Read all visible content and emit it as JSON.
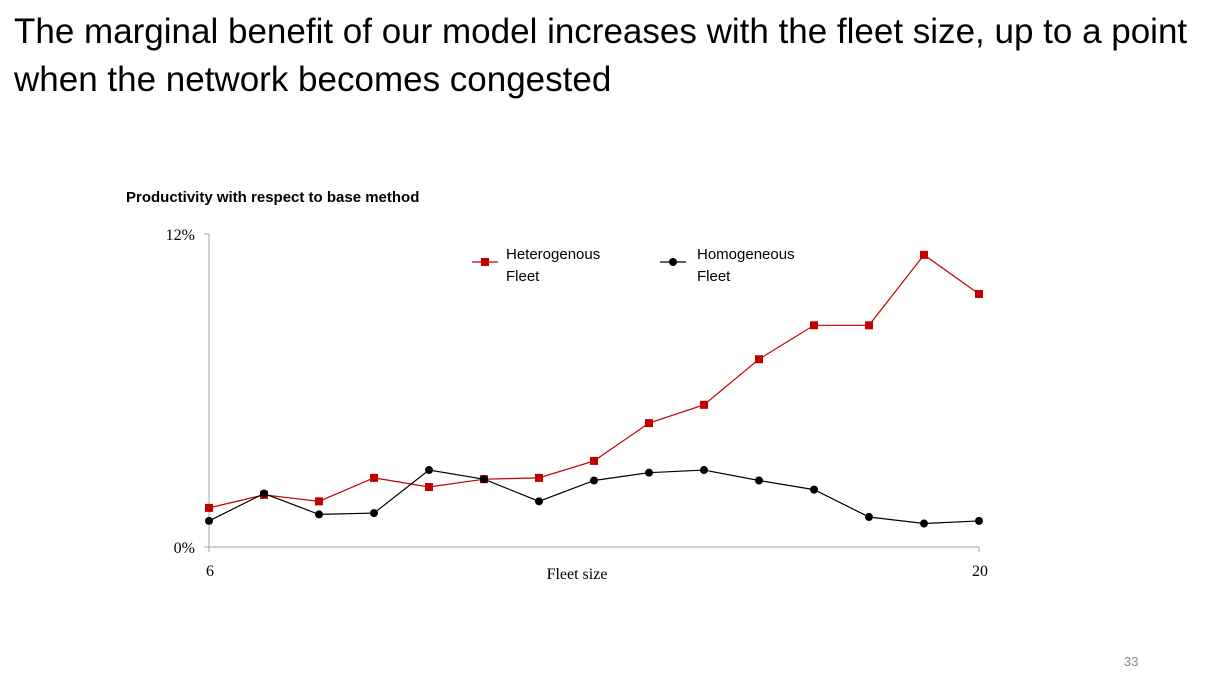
{
  "slide": {
    "title": "The marginal benefit of our model increases with the fleet size, up to a point when the network becomes congested",
    "page_number": "33"
  },
  "colors": {
    "heterogenous": "#c00000",
    "homogeneous": "#000000",
    "axis": "#a6a6a6"
  },
  "chart_data": {
    "type": "line",
    "title": "Productivity with respect to base method",
    "xlabel": "Fleet size",
    "ylabel": "",
    "x": [
      6,
      7,
      8,
      9,
      10,
      11,
      12,
      13,
      14,
      15,
      16,
      17,
      18,
      19,
      20
    ],
    "xlim": [
      6,
      20
    ],
    "ylim": [
      0,
      12
    ],
    "x_tick_labels": [
      "6",
      "20"
    ],
    "y_tick_labels": [
      "0%",
      "12%"
    ],
    "grid": false,
    "legend_position": "top-center",
    "series": [
      {
        "name_lines": [
          "Heterogenous",
          "Fleet"
        ],
        "marker": "square",
        "values": [
          1.5,
          2.0,
          1.75,
          2.65,
          2.3,
          2.6,
          2.65,
          3.3,
          4.75,
          5.45,
          7.2,
          8.5,
          8.5,
          11.2,
          9.7
        ]
      },
      {
        "name_lines": [
          "Homogeneous",
          "Fleet"
        ],
        "marker": "circle",
        "values": [
          1.0,
          2.05,
          1.25,
          1.3,
          2.95,
          2.6,
          1.75,
          2.55,
          2.85,
          2.95,
          2.55,
          2.2,
          1.15,
          0.9,
          1.0
        ]
      }
    ]
  }
}
